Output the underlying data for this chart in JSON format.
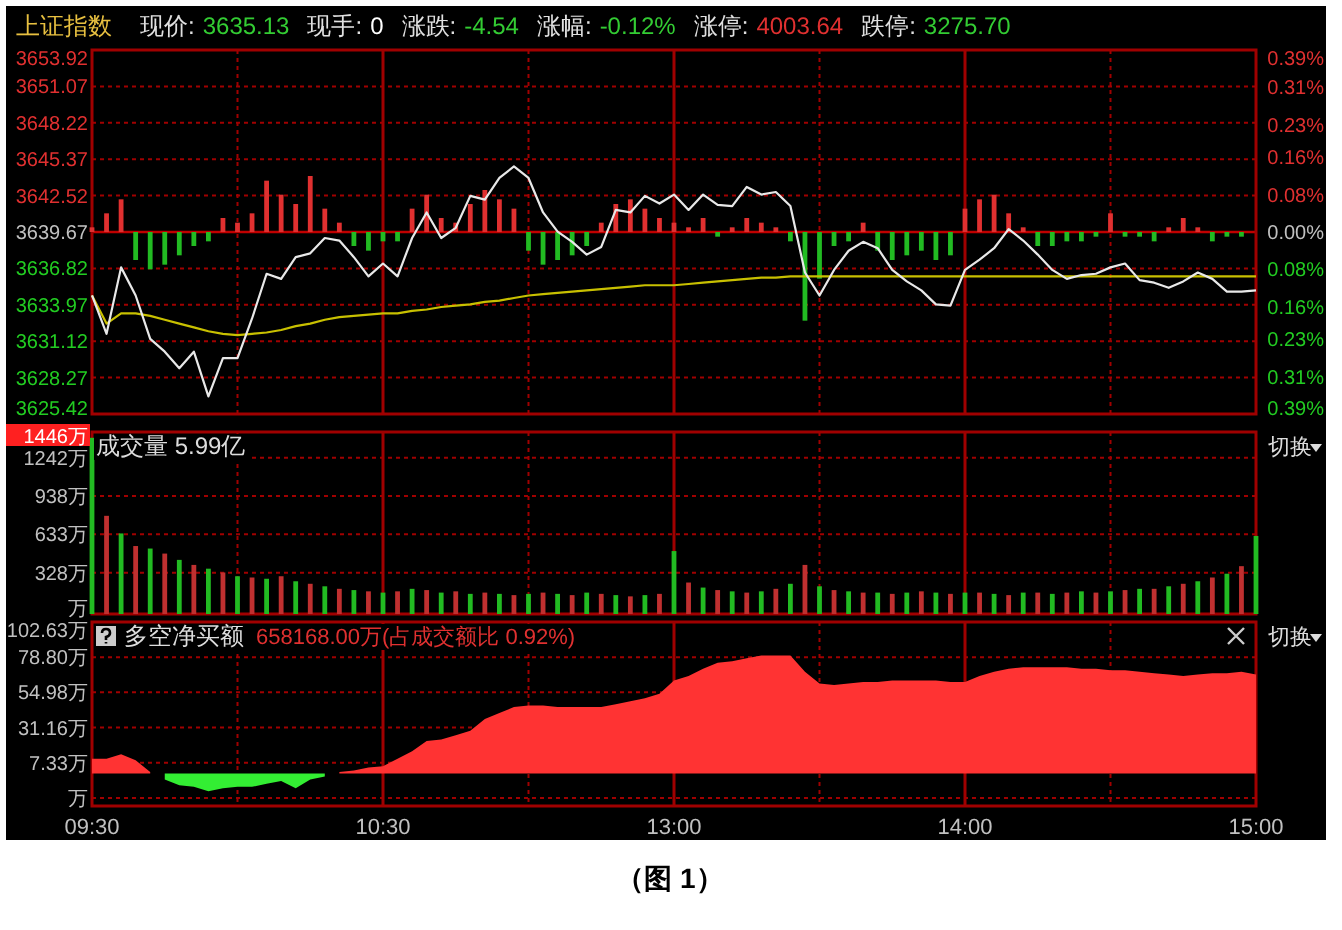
{
  "chart_data": [
    {
      "type": "line",
      "title": "上证指数",
      "annotations": [
        "现价:",
        "3635.13",
        "现手:",
        "0",
        "涨跌:",
        "-4.54",
        "涨幅:",
        "-0.12%",
        "涨停:",
        "4003.64",
        "跌停:",
        "3275.70"
      ],
      "categories": [
        null,
        null,
        null,
        null,
        null,
        null,
        null,
        null,
        null,
        null,
        null,
        null,
        null,
        null,
        null,
        null,
        null,
        null,
        null,
        null,
        null,
        null,
        null,
        null,
        null,
        null,
        null,
        null,
        null,
        null,
        null,
        null,
        null,
        null,
        null,
        null,
        null,
        null,
        null,
        null,
        null,
        null,
        null,
        null,
        null,
        null,
        null,
        null,
        null,
        null,
        null,
        null,
        null,
        null,
        null,
        null,
        null,
        null,
        null,
        null,
        null,
        null,
        null,
        null,
        null,
        null,
        null,
        null,
        null,
        null,
        null,
        null,
        null,
        null,
        null,
        null,
        null,
        null,
        null,
        null,
        null
      ],
      "ylim": [
        3625.42,
        3653.92
      ],
      "yticks": [
        3625.42,
        3628.27,
        3631.12,
        3633.97,
        3636.82,
        3639.67,
        3642.52,
        3645.37,
        3648.22,
        3651.07,
        3653.92
      ],
      "y2lim": [
        -0.39,
        0.39
      ],
      "y2ticks": [
        {
          "value": -0.39,
          "label": "0.39%"
        },
        {
          "value": -0.31,
          "label": "0.31%"
        },
        {
          "value": -0.23,
          "label": "0.23%"
        },
        {
          "value": -0.16,
          "label": "0.16%"
        },
        {
          "value": -0.08,
          "label": "0.08%"
        },
        {
          "value": 0,
          "label": "0.00%"
        },
        {
          "value": 0.08,
          "label": "0.08%"
        },
        {
          "value": 0.16,
          "label": "0.16%"
        },
        {
          "value": 0.23,
          "label": "0.23%"
        },
        {
          "value": 0.31,
          "label": "0.31%"
        },
        {
          "value": 0.39,
          "label": "0.39%"
        }
      ],
      "tick_labels": "y",
      "grid": true,
      "ref_lines": [
        {
          "axis": "y2",
          "value": 0,
          "color": "#c00000"
        }
      ],
      "series": [
        {
          "type": "bar",
          "axis": "y2",
          "color": "#e03030",
          "values": [
            0.01,
            0.04,
            0.07,
            null,
            null,
            null,
            null,
            null,
            null,
            0.03,
            0.02,
            0.04,
            0.11,
            0.08,
            0.06,
            0.12,
            0.05,
            0.02,
            null,
            null,
            null,
            null,
            0.05,
            0.08,
            0.03,
            0.02,
            0.06,
            0.09,
            0.07,
            0.05,
            null,
            null,
            null,
            null,
            null,
            0.02,
            0.06,
            0.07,
            0.05,
            0.03,
            0.02,
            0.01,
            0.03,
            null,
            0.01,
            0.03,
            0.02,
            0.01,
            null,
            null,
            null,
            null,
            null,
            0.02,
            null,
            null,
            null,
            null,
            null,
            null,
            0.05,
            0.07,
            0.08,
            0.04,
            0.01,
            null,
            null,
            null,
            null,
            null,
            0.04,
            null,
            null,
            null,
            0.01,
            0.03,
            0.01,
            null,
            null,
            null,
            null
          ]
        },
        {
          "type": "bar",
          "axis": "y2",
          "color": "#22bb22",
          "values": [
            null,
            null,
            null,
            -0.06,
            -0.08,
            -0.07,
            -0.05,
            -0.03,
            -0.02,
            null,
            null,
            null,
            null,
            null,
            null,
            null,
            null,
            null,
            -0.03,
            -0.04,
            -0.02,
            -0.02,
            null,
            null,
            null,
            null,
            null,
            null,
            null,
            null,
            -0.04,
            -0.07,
            -0.06,
            -0.05,
            -0.03,
            null,
            null,
            null,
            null,
            null,
            null,
            null,
            null,
            -0.01,
            null,
            null,
            null,
            null,
            -0.02,
            -0.19,
            -0.1,
            -0.03,
            -0.02,
            null,
            -0.04,
            -0.06,
            -0.05,
            -0.04,
            -0.06,
            -0.05,
            null,
            null,
            null,
            null,
            null,
            -0.03,
            -0.03,
            -0.02,
            -0.02,
            -0.01,
            null,
            -0.01,
            -0.01,
            -0.02,
            null,
            null,
            null,
            -0.02,
            -0.01,
            -0.01,
            null
          ]
        },
        {
          "type": "line",
          "color": "#c8c000",
          "values": [
            3634.7,
            3632.5,
            3633.3,
            3633.3,
            3633.1,
            3632.8,
            3632.5,
            3632.2,
            3631.9,
            3631.7,
            3631.6,
            3631.7,
            3631.8,
            3632.0,
            3632.3,
            3632.5,
            3632.8,
            3633.0,
            3633.1,
            3633.2,
            3633.3,
            3633.3,
            3633.5,
            3633.6,
            3633.8,
            3633.9,
            3634.0,
            3634.2,
            3634.3,
            3634.5,
            3634.7,
            3634.8,
            3634.9,
            3635.0,
            3635.1,
            3635.2,
            3635.3,
            3635.4,
            3635.5,
            3635.5,
            3635.5,
            3635.6,
            3635.7,
            3635.8,
            3635.9,
            3636.0,
            3636.1,
            3636.1,
            3636.2,
            3636.2,
            3636.2,
            3636.2,
            3636.2,
            3636.2,
            3636.2,
            3636.2,
            3636.2,
            3636.2,
            3636.2,
            3636.2,
            3636.2,
            3636.2,
            3636.2,
            3636.2,
            3636.2,
            3636.2,
            3636.2,
            3636.2,
            3636.2,
            3636.2,
            3636.2,
            3636.2,
            3636.2,
            3636.2,
            3636.2,
            3636.2,
            3636.2,
            3636.2,
            3636.2,
            3636.2,
            3636.2
          ]
        },
        {
          "type": "line",
          "color": "#e8e8e8",
          "values": [
            3634.7,
            3631.7,
            3636.9,
            3634.7,
            3631.3,
            3630.3,
            3629.0,
            3630.3,
            3626.8,
            3629.8,
            3629.8,
            3632.9,
            3636.4,
            3636.0,
            3637.7,
            3638.0,
            3639.2,
            3639.0,
            3637.7,
            3636.2,
            3637.2,
            3636.2,
            3639.2,
            3641.2,
            3639.2,
            3640.0,
            3642.5,
            3642.2,
            3643.9,
            3644.8,
            3643.9,
            3641.2,
            3639.7,
            3638.9,
            3637.9,
            3638.5,
            3641.4,
            3641.2,
            3642.5,
            3641.9,
            3642.6,
            3641.4,
            3642.6,
            3641.8,
            3641.7,
            3643.2,
            3642.6,
            3642.8,
            3641.7,
            3636.5,
            3634.7,
            3636.7,
            3638.2,
            3638.9,
            3638.4,
            3636.7,
            3635.8,
            3635.1,
            3634.0,
            3633.9,
            3636.7,
            3637.5,
            3638.4,
            3639.9,
            3639.0,
            3637.9,
            3636.7,
            3636.0,
            3636.3,
            3636.4,
            3636.9,
            3637.2,
            3635.9,
            3635.7,
            3635.3,
            3635.8,
            3636.5,
            3636.0,
            3635.0,
            3635.0,
            3635.1
          ]
        }
      ]
    },
    {
      "type": "bar",
      "title": "成交量 5.99亿",
      "annotations": [
        "切换"
      ],
      "categories": [
        null,
        null,
        null,
        null,
        null,
        null,
        null,
        null,
        null,
        null,
        null,
        null,
        null,
        null,
        null,
        null,
        null,
        null,
        null,
        null,
        null,
        null,
        null,
        null,
        null,
        null,
        null,
        null,
        null,
        null,
        null,
        null,
        null,
        null,
        null,
        null,
        null,
        null,
        null,
        null,
        null,
        null,
        null,
        null,
        null,
        null,
        null,
        null,
        null,
        null,
        null,
        null,
        null,
        null,
        null,
        null,
        null,
        null,
        null,
        null,
        null,
        null,
        null,
        null,
        null,
        null,
        null,
        null,
        null,
        null,
        null,
        null,
        null,
        null,
        null,
        null,
        null,
        null,
        null,
        null,
        null
      ],
      "ylim": [
        0,
        1446
      ],
      "yticks": [
        {
          "value": 0,
          "label": "万"
        },
        {
          "value": 328,
          "label": "328万"
        },
        {
          "value": 633,
          "label": "633万"
        },
        {
          "value": 938,
          "label": "938万"
        },
        {
          "value": 1242,
          "label": "1242万"
        },
        {
          "value": 1446,
          "label": "1446万"
        }
      ],
      "tick_labels": "y",
      "grid": true,
      "values": [
        1400,
        780,
        640,
        540,
        520,
        480,
        430,
        390,
        360,
        330,
        300,
        290,
        280,
        300,
        260,
        240,
        220,
        200,
        190,
        180,
        170,
        180,
        200,
        190,
        170,
        180,
        160,
        170,
        160,
        150,
        160,
        170,
        160,
        150,
        170,
        160,
        150,
        140,
        150,
        160,
        500,
        250,
        210,
        190,
        180,
        170,
        180,
        200,
        240,
        390,
        220,
        190,
        180,
        170,
        170,
        160,
        170,
        180,
        170,
        160,
        170,
        170,
        160,
        150,
        170,
        170,
        160,
        170,
        180,
        170,
        180,
        190,
        200,
        200,
        220,
        240,
        260,
        290,
        320,
        380,
        620
      ],
      "colors": [
        "#22bb22",
        "#c03030",
        "#22bb22",
        "#c03030",
        "#22bb22",
        "#c03030",
        "#22bb22",
        "#c03030",
        "#22bb22",
        "#c03030",
        "#22bb22",
        "#c03030",
        "#22bb22",
        "#c03030",
        "#22bb22",
        "#c03030",
        "#22bb22",
        "#c03030",
        "#22bb22",
        "#c03030",
        "#22bb22",
        "#c03030",
        "#22bb22",
        "#c03030",
        "#22bb22",
        "#c03030",
        "#22bb22",
        "#c03030",
        "#22bb22",
        "#c03030",
        "#22bb22",
        "#c03030",
        "#22bb22",
        "#c03030",
        "#22bb22",
        "#c03030",
        "#22bb22",
        "#c03030",
        "#22bb22",
        "#c03030",
        "#22bb22",
        "#c03030",
        "#22bb22",
        "#c03030",
        "#22bb22",
        "#c03030",
        "#22bb22",
        "#c03030",
        "#22bb22",
        "#c03030",
        "#22bb22",
        "#c03030",
        "#22bb22",
        "#c03030",
        "#22bb22",
        "#c03030",
        "#22bb22",
        "#c03030",
        "#22bb22",
        "#c03030",
        "#22bb22",
        "#c03030",
        "#22bb22",
        "#c03030",
        "#22bb22",
        "#c03030",
        "#22bb22",
        "#c03030",
        "#22bb22",
        "#c03030",
        "#22bb22",
        "#c03030",
        "#22bb22",
        "#c03030",
        "#22bb22",
        "#c03030",
        "#22bb22",
        "#c03030",
        "#22bb22",
        "#c03030",
        "#22bb22"
      ]
    },
    {
      "type": "area",
      "title": "多空净买额",
      "subtitle": "658168.00万(占成交额比 0.92%)",
      "annotations": [
        "切换",
        "（图 1）"
      ],
      "categories": [
        "09:30",
        null,
        null,
        null,
        null,
        null,
        null,
        null,
        null,
        null,
        null,
        null,
        null,
        null,
        null,
        null,
        null,
        null,
        null,
        null,
        "10:30",
        null,
        null,
        null,
        null,
        null,
        null,
        null,
        null,
        null,
        null,
        null,
        null,
        null,
        null,
        null,
        null,
        null,
        null,
        null,
        "13:00",
        null,
        null,
        null,
        null,
        null,
        null,
        null,
        null,
        null,
        null,
        null,
        null,
        null,
        null,
        null,
        null,
        null,
        null,
        null,
        "14:00",
        null,
        null,
        null,
        null,
        null,
        null,
        null,
        null,
        null,
        null,
        null,
        null,
        null,
        null,
        null,
        null,
        null,
        null,
        null,
        "15:00"
      ],
      "ylim": [
        -22,
        102.63
      ],
      "yticks": [
        {
          "value": -16.5,
          "label": "万"
        },
        {
          "value": 7.33,
          "label": "7.33万"
        },
        {
          "value": 31.16,
          "label": "31.16万"
        },
        {
          "value": 54.98,
          "label": "54.98万"
        },
        {
          "value": 78.8,
          "label": "78.80万"
        },
        {
          "value": 102.63,
          "label": "102.63万"
        }
      ],
      "grid": true,
      "series": [
        {
          "color": "#ff3333",
          "values": [
            10,
            10,
            13,
            9,
            1,
            null,
            null,
            null,
            null,
            null,
            null,
            null,
            null,
            null,
            null,
            null,
            null,
            1,
            2,
            4,
            5,
            10,
            15,
            22,
            23,
            26,
            29,
            37,
            41,
            45,
            46,
            46,
            45,
            45,
            45,
            45,
            47,
            49,
            51,
            54,
            63,
            66,
            71,
            75,
            76,
            78,
            80,
            80,
            80,
            69,
            61,
            60,
            61,
            62,
            62,
            63,
            63,
            63,
            63,
            62,
            62,
            66,
            69,
            71,
            72,
            72,
            72,
            72,
            71,
            71,
            70,
            70,
            69,
            68,
            67,
            66,
            67,
            68,
            68,
            69,
            67
          ]
        },
        {
          "color": "#33ee33",
          "values": [
            null,
            null,
            null,
            null,
            null,
            -4,
            -8,
            -9,
            -12,
            -10,
            -9,
            -9,
            -7,
            -5,
            -10,
            -4,
            -2,
            null,
            null,
            null,
            null,
            null,
            null,
            null,
            null,
            null,
            null,
            null,
            null,
            null,
            null,
            null,
            null,
            null,
            null,
            null,
            null,
            null,
            null,
            null,
            null,
            null,
            null,
            null,
            null,
            null,
            null,
            null,
            null,
            null,
            null,
            null,
            null,
            null,
            null,
            null,
            null,
            null,
            null,
            null,
            null,
            null,
            null,
            null,
            null,
            null,
            null,
            null,
            null,
            null,
            null,
            null,
            null,
            null,
            null,
            null,
            null,
            null,
            null,
            null,
            null
          ]
        }
      ]
    }
  ]
}
